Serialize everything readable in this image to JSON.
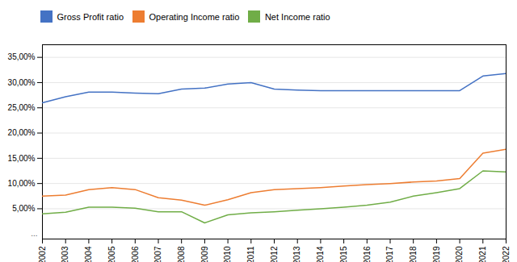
{
  "chart_data": {
    "type": "line",
    "x": [
      2002,
      2003,
      2004,
      2005,
      2006,
      2007,
      2008,
      2009,
      2010,
      2011,
      2012,
      2013,
      2014,
      2015,
      2016,
      2017,
      2018,
      2019,
      2020,
      2021,
      2022
    ],
    "series": [
      {
        "name": "Gross Profit ratio",
        "color": "#4472c4",
        "values": [
          0.26,
          0.272,
          0.281,
          0.281,
          0.279,
          0.278,
          0.287,
          0.289,
          0.297,
          0.3,
          0.287,
          0.285,
          0.284,
          0.284,
          0.284,
          0.284,
          0.284,
          0.284,
          0.284,
          0.313,
          0.318
        ]
      },
      {
        "name": "Operating Income ratio",
        "color": "#ed7d31",
        "values": [
          0.075,
          0.077,
          0.088,
          0.092,
          0.088,
          0.072,
          0.067,
          0.057,
          0.068,
          0.082,
          0.088,
          0.09,
          0.092,
          0.095,
          0.098,
          0.1,
          0.103,
          0.105,
          0.11,
          0.16,
          0.168
        ]
      },
      {
        "name": "Net Income ratio",
        "color": "#70ad47",
        "values": [
          0.04,
          0.043,
          0.053,
          0.053,
          0.051,
          0.044,
          0.044,
          0.022,
          0.038,
          0.042,
          0.044,
          0.047,
          0.05,
          0.053,
          0.057,
          0.063,
          0.075,
          0.082,
          0.09,
          0.125,
          0.123
        ]
      }
    ],
    "xlim": [
      2002,
      2022
    ],
    "xticks": [
      2002,
      2003,
      2004,
      2005,
      2006,
      2007,
      2008,
      2009,
      2010,
      2011,
      2012,
      2013,
      2014,
      2015,
      2016,
      2017,
      2018,
      2019,
      2020,
      2021,
      2022
    ],
    "ylim": [
      -0.01,
      0.375
    ],
    "yticks": [
      {
        "value": 0.05,
        "label": "5,00%"
      },
      {
        "value": 0.1,
        "label": "10,00%"
      },
      {
        "value": 0.15,
        "label": "15,00%"
      },
      {
        "value": 0.2,
        "label": "20,00%"
      },
      {
        "value": 0.25,
        "label": "25,00%"
      },
      {
        "value": 0.3,
        "label": "30,00%"
      },
      {
        "value": 0.35,
        "label": "35,00%"
      }
    ],
    "grid": true,
    "legend": "top",
    "annotations": [
      "..."
    ]
  }
}
